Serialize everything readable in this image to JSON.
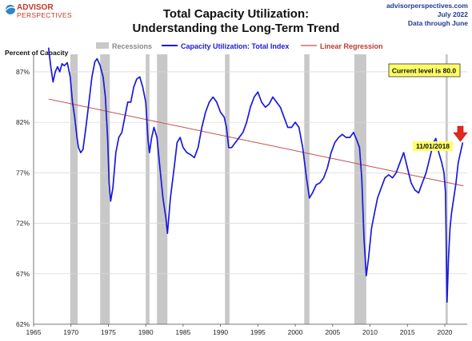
{
  "logo": {
    "line1": "ADVISOR",
    "line2": "PERSPECTIVES"
  },
  "source": {
    "site": "advisorperspectives.com",
    "date": "July 2022",
    "note": "Data through June"
  },
  "chart_data": {
    "type": "line",
    "title": "Total Capacity Utilization:",
    "subtitle": "Understanding  the Long-Term Trend",
    "ylabel": "Percent of Capacity",
    "xlim": [
      1965,
      2023
    ],
    "ylim": [
      62,
      90
    ],
    "x_ticks": [
      1965,
      1970,
      1975,
      1980,
      1985,
      1990,
      1995,
      2000,
      2005,
      2010,
      2015,
      2020
    ],
    "x_tick_labels": [
      "1965",
      "1970",
      "1975",
      "1980",
      "1985",
      "1990",
      "1995",
      "2000",
      "2005",
      "2010",
      "2015",
      "2020"
    ],
    "y_ticks": [
      62,
      67,
      72,
      77,
      82,
      87
    ],
    "y_tick_labels": [
      "62%",
      "67%",
      "72%",
      "77%",
      "82%",
      "87%"
    ],
    "legend": {
      "placement": "top",
      "recessions_label": "Recessions",
      "series_label": "Capacity Utilization: Total Index",
      "regression_label": "Linear Regression"
    },
    "colors": {
      "series": "#1a1adb",
      "regression": "#c0504d",
      "recession": "#c8c8c8",
      "callout": "#ffff66",
      "arrow": "#e8261c"
    },
    "recessions": [
      [
        1969.9,
        1970.9
      ],
      [
        1973.9,
        1975.2
      ],
      [
        1980.0,
        1980.5
      ],
      [
        1981.5,
        1982.9
      ],
      [
        1990.6,
        1991.2
      ],
      [
        2001.2,
        2001.9
      ],
      [
        2007.9,
        2009.5
      ],
      [
        2020.1,
        2020.4
      ]
    ],
    "regression": {
      "x": [
        1967,
        2022.5
      ],
      "y": [
        84.3,
        75.7
      ]
    },
    "series": [
      {
        "name": "Capacity Utilization: Total Index",
        "x": [
          1967.0,
          1967.3,
          1967.6,
          1967.9,
          1968.2,
          1968.5,
          1968.8,
          1969.1,
          1969.5,
          1969.9,
          1970.2,
          1970.5,
          1970.8,
          1971.0,
          1971.3,
          1971.6,
          1972.0,
          1972.4,
          1972.8,
          1973.2,
          1973.5,
          1973.9,
          1974.3,
          1974.6,
          1974.9,
          1975.1,
          1975.3,
          1975.6,
          1976.0,
          1976.4,
          1976.8,
          1977.2,
          1977.6,
          1978.0,
          1978.4,
          1978.8,
          1979.2,
          1979.6,
          1980.0,
          1980.3,
          1980.5,
          1980.8,
          1981.1,
          1981.5,
          1981.9,
          1982.3,
          1982.7,
          1982.9,
          1983.3,
          1983.8,
          1984.2,
          1984.6,
          1985.0,
          1985.5,
          1986.0,
          1986.5,
          1987.0,
          1987.5,
          1988.0,
          1988.5,
          1989.0,
          1989.5,
          1990.0,
          1990.5,
          1990.8,
          1991.1,
          1991.5,
          1992.0,
          1992.5,
          1993.0,
          1993.5,
          1994.0,
          1994.5,
          1995.0,
          1995.5,
          1996.0,
          1996.5,
          1997.0,
          1997.5,
          1998.0,
          1998.5,
          1999.0,
          1999.5,
          2000.0,
          2000.5,
          2001.0,
          2001.5,
          2001.9,
          2002.3,
          2002.8,
          2003.3,
          2003.8,
          2004.3,
          2004.8,
          2005.3,
          2005.8,
          2006.3,
          2006.8,
          2007.3,
          2007.8,
          2008.2,
          2008.6,
          2008.9,
          2009.2,
          2009.5,
          2009.8,
          2010.2,
          2010.6,
          2011.0,
          2011.5,
          2012.0,
          2012.5,
          2013.0,
          2013.5,
          2014.0,
          2014.5,
          2015.0,
          2015.5,
          2016.0,
          2016.5,
          2017.0,
          2017.5,
          2018.0,
          2018.5,
          2018.8,
          2019.2,
          2019.6,
          2019.9,
          2020.1,
          2020.3,
          2020.5,
          2020.7,
          2020.9,
          2021.2,
          2021.5,
          2021.8,
          2022.1,
          2022.4
        ],
        "values": [
          89.4,
          87.5,
          86.0,
          87.0,
          87.5,
          87.0,
          87.8,
          87.6,
          87.9,
          86.5,
          84.0,
          82.5,
          80.5,
          79.5,
          79.0,
          79.3,
          81.5,
          84.0,
          86.5,
          88.0,
          88.3,
          87.6,
          86.5,
          84.5,
          80.5,
          76.0,
          74.2,
          75.5,
          79.0,
          80.5,
          81.0,
          82.5,
          84.0,
          84.0,
          85.5,
          86.3,
          86.5,
          85.5,
          84.0,
          80.3,
          79.0,
          80.5,
          81.5,
          80.5,
          77.5,
          74.5,
          72.5,
          71.0,
          74.5,
          77.5,
          80.0,
          80.5,
          79.5,
          79.0,
          78.8,
          78.5,
          79.5,
          81.5,
          83.0,
          84.0,
          84.5,
          84.0,
          83.0,
          82.5,
          81.5,
          79.5,
          79.5,
          80.0,
          80.5,
          81.0,
          82.0,
          83.5,
          84.5,
          85.0,
          84.0,
          83.5,
          83.8,
          84.5,
          84.0,
          83.5,
          82.5,
          81.5,
          81.5,
          82.0,
          81.5,
          79.5,
          76.5,
          74.5,
          75.0,
          75.8,
          76.0,
          76.5,
          77.5,
          79.0,
          80.0,
          80.5,
          80.8,
          80.5,
          80.5,
          81.0,
          80.3,
          79.5,
          76.5,
          70.5,
          66.8,
          68.5,
          71.5,
          73.0,
          74.5,
          75.5,
          76.5,
          76.8,
          76.5,
          77.0,
          78.0,
          79.0,
          77.5,
          76.0,
          75.3,
          75.0,
          76.0,
          77.0,
          78.5,
          80.0,
          80.4,
          79.0,
          78.0,
          77.0,
          75.0,
          64.2,
          68.5,
          71.5,
          73.0,
          74.5,
          76.0,
          78.0,
          79.0,
          80.0
        ]
      }
    ],
    "annotations": {
      "current_level": "Current level is 80.0",
      "peak_label": "11/01/2018"
    }
  }
}
